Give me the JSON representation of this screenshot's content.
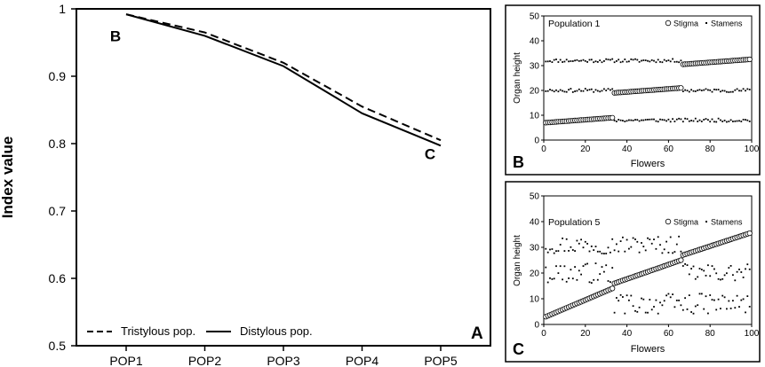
{
  "colors": {
    "line": "#000000",
    "background": "#ffffff",
    "marker_fill": "#ffffff",
    "panel_border": "#000000"
  },
  "chart_data": [
    {
      "id": "A",
      "type": "line",
      "panel_letter": "A",
      "title": "",
      "xlabel": "",
      "ylabel": "Index value",
      "categories": [
        "POP1",
        "POP2",
        "POP3",
        "POP4",
        "POP5"
      ],
      "ylim": [
        0.5,
        1
      ],
      "yticks": [
        "0.5",
        "0.6",
        "0.7",
        "0.8",
        "0.9",
        "1"
      ],
      "grid": false,
      "legend_position": "bottom-left",
      "series": [
        {
          "name": "Tristylous pop.",
          "style": "dashed",
          "values": [
            0.992,
            0.965,
            0.92,
            0.855,
            0.805
          ]
        },
        {
          "name": "Distylous pop.",
          "style": "solid",
          "values": [
            0.992,
            0.96,
            0.915,
            0.845,
            0.797
          ]
        }
      ],
      "annotations": [
        {
          "text": "B",
          "x": "POP1",
          "y": 0.96
        },
        {
          "text": "C",
          "x": "POP5",
          "y": 0.785
        }
      ]
    },
    {
      "id": "B",
      "type": "scatter",
      "panel_letter": "B",
      "title": "Population 1",
      "xlabel": "Flowers",
      "ylabel": "Organ height",
      "xlim": [
        0,
        100
      ],
      "ylim": [
        0,
        50
      ],
      "xticks": [
        "0",
        "20",
        "40",
        "60",
        "80",
        "100"
      ],
      "yticks": [
        "0",
        "10",
        "20",
        "30",
        "40",
        "50"
      ],
      "grid": false,
      "legend_position": "top-right",
      "legend": [
        "Stigma",
        "Stamens"
      ],
      "stigma_groups": [
        {
          "x_from": 1,
          "x_to": 33,
          "y_from": 7,
          "y_to": 9
        },
        {
          "x_from": 34,
          "x_to": 66,
          "y_from": 19,
          "y_to": 21
        },
        {
          "x_from": 67,
          "x_to": 99,
          "y_from": 30.5,
          "y_to": 32.5
        }
      ],
      "stamen_bands": [
        {
          "x_from": 1,
          "x_to": 66,
          "center": 32,
          "spread": 0.7
        },
        {
          "x_from": 1,
          "x_to": 33,
          "center": 20,
          "spread": 0.7
        },
        {
          "x_from": 67,
          "x_to": 99,
          "center": 20,
          "spread": 0.7
        },
        {
          "x_from": 34,
          "x_to": 99,
          "center": 8,
          "spread": 0.7
        }
      ]
    },
    {
      "id": "C",
      "type": "scatter",
      "panel_letter": "C",
      "title": "Population 5",
      "xlabel": "Flowers",
      "ylabel": "Organ height",
      "xlim": [
        0,
        100
      ],
      "ylim": [
        0,
        50
      ],
      "xticks": [
        "0",
        "20",
        "40",
        "60",
        "80",
        "100"
      ],
      "yticks": [
        "0",
        "10",
        "20",
        "30",
        "40",
        "50"
      ],
      "grid": false,
      "legend_position": "top-right",
      "legend": [
        "Stigma",
        "Stamens"
      ],
      "stigma_groups": [
        {
          "x_from": 1,
          "x_to": 33,
          "y_from": 3,
          "y_to": 14
        },
        {
          "x_from": 34,
          "x_to": 66,
          "y_from": 16,
          "y_to": 25
        },
        {
          "x_from": 67,
          "x_to": 99,
          "y_from": 27,
          "y_to": 35.5
        }
      ],
      "stamen_bands": [
        {
          "x_from": 1,
          "x_to": 66,
          "center": 31,
          "spread": 3.5
        },
        {
          "x_from": 1,
          "x_to": 33,
          "center": 20,
          "spread": 4
        },
        {
          "x_from": 67,
          "x_to": 99,
          "center": 20,
          "spread": 3.5
        },
        {
          "x_from": 34,
          "x_to": 99,
          "center": 8,
          "spread": 4
        }
      ]
    }
  ]
}
